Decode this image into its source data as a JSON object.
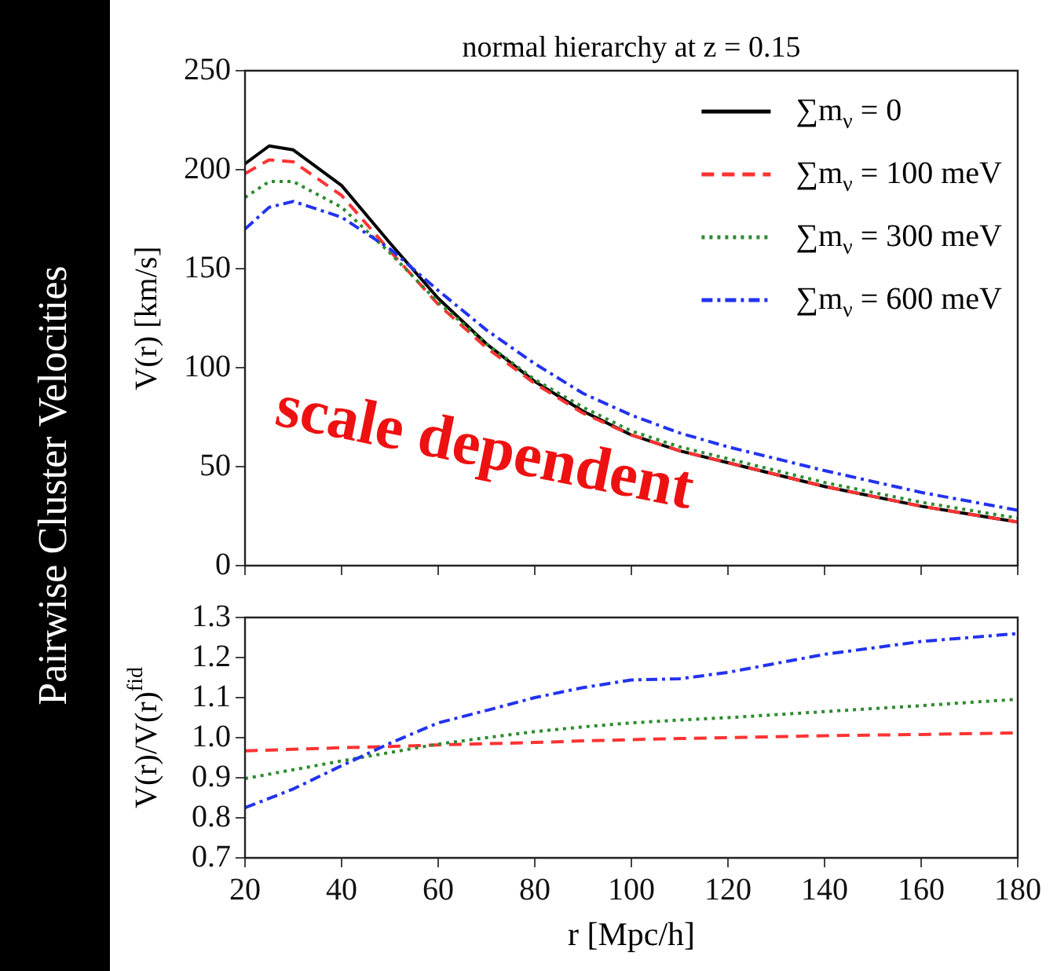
{
  "chart_data": [
    {
      "type": "line",
      "title": "normal hierarchy at z = 0.15",
      "ylabel": "V(r) [km/s]",
      "annotations": [
        "Pairwise Cluster Velocities",
        "scale dependent"
      ],
      "x": [
        20,
        25,
        30,
        40,
        50,
        60,
        70,
        80,
        90,
        100,
        110,
        120,
        140,
        160,
        180
      ],
      "xlim": [
        20,
        180
      ],
      "xticks": [
        20,
        40,
        60,
        80,
        100,
        120,
        140,
        160,
        180
      ],
      "ylim": [
        0,
        250
      ],
      "yticks": [
        0,
        50,
        100,
        150,
        200,
        250
      ],
      "tick_labels": "y",
      "grid": false,
      "legend": "top right",
      "marker": "none",
      "series": [
        {
          "name": "∑m$_{ν}$ = 0",
          "color": "#000000",
          "line_style": "solid",
          "values": [
            203,
            212,
            210,
            192,
            163,
            135,
            112,
            93,
            78,
            66,
            58,
            52,
            40,
            30,
            22
          ]
        },
        {
          "name": "∑m$_{ν}$ = 100 meV",
          "color": "#ff3333",
          "line_style": "dashed",
          "values": [
            198,
            205,
            204,
            187,
            159,
            132,
            110,
            92,
            77,
            66,
            58,
            52,
            40,
            30,
            22
          ]
        },
        {
          "name": "∑m$_{ν}$ = 300 meV",
          "color": "#2e8b2e",
          "line_style": "dotted",
          "values": [
            186,
            194,
            194,
            181,
            158,
            133,
            112,
            94,
            80,
            68,
            60,
            54,
            42,
            32,
            24
          ]
        },
        {
          "name": "∑m$_{ν}$ = 600 meV",
          "color": "#2233ee",
          "line_style": "dashdot",
          "values": [
            170,
            181,
            184,
            176,
            160,
            139,
            119,
            102,
            87,
            76,
            67,
            60,
            48,
            37,
            28
          ]
        }
      ]
    },
    {
      "type": "line",
      "xlabel": "r [Mpc/h]",
      "ylabel": "V(r)/V(r)$^{fid}$",
      "x": [
        20,
        30,
        40,
        50,
        60,
        70,
        80,
        90,
        100,
        110,
        120,
        140,
        160,
        180
      ],
      "xlim": [
        20,
        180
      ],
      "xticks": [
        20,
        40,
        60,
        80,
        100,
        120,
        140,
        160,
        180
      ],
      "ylim": [
        0.7,
        1.3
      ],
      "yticks": [
        {
          "value": 0.7,
          "label": "0.7"
        },
        {
          "value": 0.8,
          "label": "0.8"
        },
        {
          "value": 0.9,
          "label": "0.9"
        },
        {
          "value": 1.0,
          "label": "1.0"
        },
        {
          "value": 1.1,
          "label": "1.1"
        },
        {
          "value": 1.2,
          "label": "1.2"
        },
        {
          "value": 1.3,
          "label": "1.3"
        }
      ],
      "grid": false,
      "marker": "none",
      "series": [
        {
          "color": "#ff3333",
          "line_style": "dashed",
          "values": [
            0.967,
            0.971,
            0.975,
            0.978,
            0.982,
            0.985,
            0.988,
            0.992,
            0.995,
            0.998,
            1.0,
            1.005,
            1.008,
            1.012
          ]
        },
        {
          "color": "#2e8b2e",
          "line_style": "dotted",
          "values": [
            0.898,
            0.92,
            0.942,
            0.963,
            0.984,
            1.0,
            1.015,
            1.027,
            1.037,
            1.044,
            1.05,
            1.065,
            1.08,
            1.096
          ]
        },
        {
          "color": "#2233ee",
          "line_style": "dashdot",
          "values": [
            0.825,
            0.872,
            0.93,
            0.986,
            1.037,
            1.068,
            1.1,
            1.125,
            1.144,
            1.147,
            1.163,
            1.208,
            1.24,
            1.26
          ]
        }
      ]
    }
  ]
}
